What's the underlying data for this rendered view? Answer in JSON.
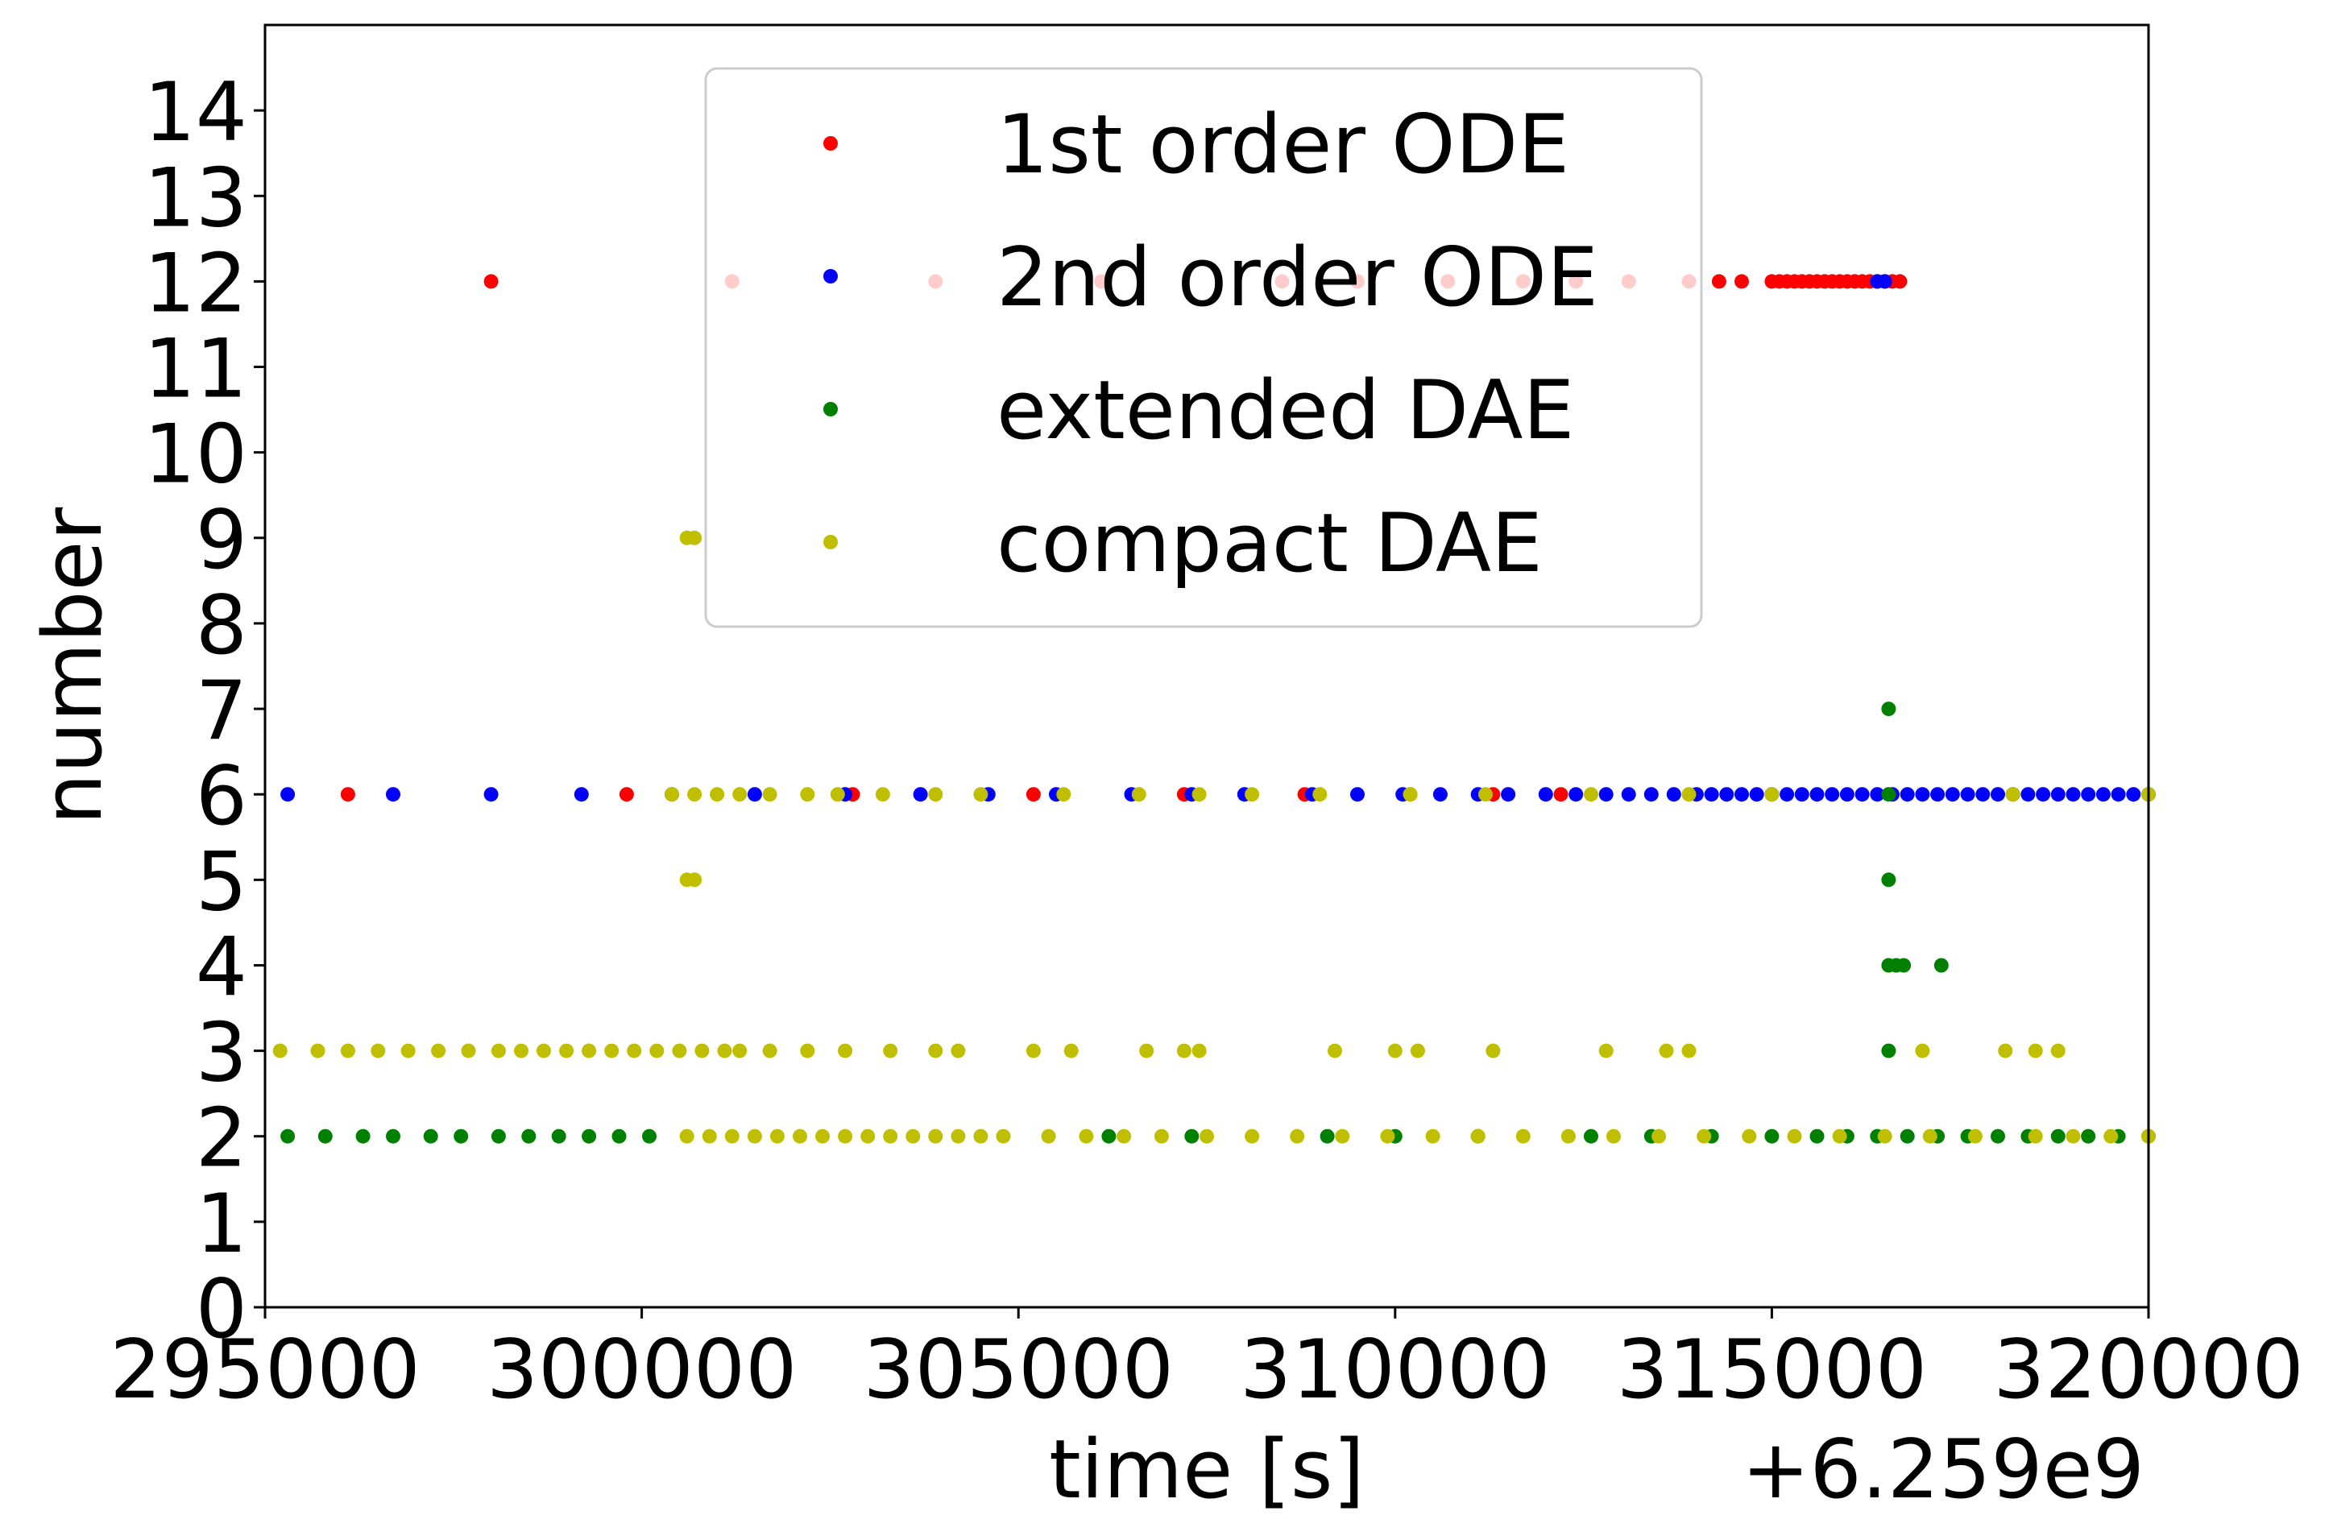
{
  "chart_data": {
    "type": "scatter",
    "xlabel": "time [s]",
    "ylabel": "number",
    "x_offset_label": "+6.259e9",
    "xlim": [
      295000,
      320000
    ],
    "ylim": [
      0,
      15
    ],
    "x_ticks": [
      "295000",
      "300000",
      "305000",
      "310000",
      "315000",
      "320000"
    ],
    "y_ticks": [
      "0",
      "1",
      "2",
      "3",
      "4",
      "5",
      "6",
      "7",
      "8",
      "9",
      "10",
      "11",
      "12",
      "13",
      "14"
    ],
    "grid": false,
    "legend_position": "upper center",
    "series": [
      {
        "name": "1st order ODE",
        "color": "#ff0000",
        "points": [
          [
            298000,
            12
          ],
          [
            301200,
            12
          ],
          [
            303900,
            12
          ],
          [
            306100,
            12
          ],
          [
            308500,
            12
          ],
          [
            309500,
            12
          ],
          [
            310700,
            12
          ],
          [
            311700,
            12
          ],
          [
            312400,
            12
          ],
          [
            313100,
            12
          ],
          [
            313900,
            12
          ],
          [
            314300,
            12
          ],
          [
            314600,
            12
          ],
          [
            315000,
            12
          ],
          [
            315100,
            12
          ],
          [
            315200,
            12
          ],
          [
            315300,
            12
          ],
          [
            315400,
            12
          ],
          [
            315500,
            12
          ],
          [
            315600,
            12
          ],
          [
            315700,
            12
          ],
          [
            315800,
            12
          ],
          [
            315900,
            12
          ],
          [
            316000,
            12
          ],
          [
            316100,
            12
          ],
          [
            316200,
            12
          ],
          [
            316300,
            12
          ],
          [
            316400,
            12
          ],
          [
            316500,
            12
          ],
          [
            316600,
            12
          ],
          [
            316700,
            12
          ],
          [
            296100,
            6
          ],
          [
            299800,
            6
          ],
          [
            302800,
            6
          ],
          [
            305200,
            6
          ],
          [
            307200,
            6
          ],
          [
            308800,
            6
          ],
          [
            310200,
            6
          ],
          [
            311300,
            6
          ],
          [
            312200,
            6
          ]
        ]
      },
      {
        "name": "2nd order ODE",
        "color": "#0000ff",
        "points": [
          [
            295300,
            6
          ],
          [
            296700,
            6
          ],
          [
            298000,
            6
          ],
          [
            299200,
            6
          ],
          [
            300400,
            6
          ],
          [
            301500,
            6
          ],
          [
            302700,
            6
          ],
          [
            303700,
            6
          ],
          [
            304600,
            6
          ],
          [
            305500,
            6
          ],
          [
            306500,
            6
          ],
          [
            307300,
            6
          ],
          [
            308000,
            6
          ],
          [
            308900,
            6
          ],
          [
            309500,
            6
          ],
          [
            310100,
            6
          ],
          [
            310600,
            6
          ],
          [
            311100,
            6
          ],
          [
            311500,
            6
          ],
          [
            312000,
            6
          ],
          [
            312400,
            6
          ],
          [
            312800,
            6
          ],
          [
            313100,
            6
          ],
          [
            313400,
            6
          ],
          [
            313700,
            6
          ],
          [
            314000,
            6
          ],
          [
            314200,
            6
          ],
          [
            314400,
            6
          ],
          [
            314600,
            6
          ],
          [
            314800,
            6
          ],
          [
            315000,
            6
          ],
          [
            315200,
            6
          ],
          [
            315400,
            6
          ],
          [
            315600,
            6
          ],
          [
            315800,
            6
          ],
          [
            316000,
            6
          ],
          [
            316200,
            6
          ],
          [
            316400,
            6
          ],
          [
            316600,
            6
          ],
          [
            316800,
            6
          ],
          [
            317000,
            6
          ],
          [
            317200,
            6
          ],
          [
            317400,
            6
          ],
          [
            317600,
            6
          ],
          [
            317800,
            6
          ],
          [
            318000,
            6
          ],
          [
            318200,
            6
          ],
          [
            318400,
            6
          ],
          [
            318600,
            6
          ],
          [
            318800,
            6
          ],
          [
            319000,
            6
          ],
          [
            319200,
            6
          ],
          [
            319400,
            6
          ],
          [
            319600,
            6
          ],
          [
            319800,
            6
          ],
          [
            320000,
            6
          ],
          [
            316400,
            12
          ],
          [
            316500,
            12
          ]
        ]
      },
      {
        "name": "extended DAE",
        "color": "#008000",
        "points": [
          [
            295300,
            2
          ],
          [
            295800,
            2
          ],
          [
            296300,
            2
          ],
          [
            296700,
            2
          ],
          [
            297200,
            2
          ],
          [
            297600,
            2
          ],
          [
            298100,
            2
          ],
          [
            298500,
            2
          ],
          [
            298900,
            2
          ],
          [
            299300,
            2
          ],
          [
            299700,
            2
          ],
          [
            300100,
            2
          ],
          [
            306200,
            2
          ],
          [
            307300,
            2
          ],
          [
            309100,
            2
          ],
          [
            310000,
            2
          ],
          [
            311100,
            2
          ],
          [
            312600,
            2
          ],
          [
            313400,
            2
          ],
          [
            314200,
            2
          ],
          [
            315000,
            2
          ],
          [
            315600,
            2
          ],
          [
            316000,
            2
          ],
          [
            316400,
            2
          ],
          [
            316800,
            2
          ],
          [
            317200,
            2
          ],
          [
            317600,
            2
          ],
          [
            318000,
            2
          ],
          [
            318400,
            2
          ],
          [
            318800,
            2
          ],
          [
            319200,
            2
          ],
          [
            319600,
            2
          ],
          [
            320000,
            2
          ],
          [
            316550,
            7
          ],
          [
            316550,
            6
          ],
          [
            316550,
            5
          ],
          [
            316550,
            4
          ],
          [
            316650,
            4
          ],
          [
            316750,
            4
          ],
          [
            317250,
            4
          ],
          [
            316550,
            3
          ]
        ]
      },
      {
        "name": "compact DAE",
        "color": "#bfbf00",
        "points": [
          [
            295200,
            3
          ],
          [
            295700,
            3
          ],
          [
            296100,
            3
          ],
          [
            296500,
            3
          ],
          [
            296900,
            3
          ],
          [
            297300,
            3
          ],
          [
            297700,
            3
          ],
          [
            298100,
            3
          ],
          [
            298400,
            3
          ],
          [
            298700,
            3
          ],
          [
            299000,
            3
          ],
          [
            299300,
            3
          ],
          [
            299600,
            3
          ],
          [
            299900,
            3
          ],
          [
            300200,
            3
          ],
          [
            300500,
            3
          ],
          [
            300800,
            3
          ],
          [
            301100,
            3
          ],
          [
            301300,
            3
          ],
          [
            301700,
            3
          ],
          [
            302200,
            3
          ],
          [
            302700,
            3
          ],
          [
            303300,
            3
          ],
          [
            303900,
            3
          ],
          [
            304200,
            3
          ],
          [
            305200,
            3
          ],
          [
            305700,
            3
          ],
          [
            306700,
            3
          ],
          [
            307200,
            3
          ],
          [
            307400,
            3
          ],
          [
            309200,
            3
          ],
          [
            310000,
            3
          ],
          [
            310300,
            3
          ],
          [
            311300,
            3
          ],
          [
            312800,
            3
          ],
          [
            313600,
            3
          ],
          [
            313900,
            3
          ],
          [
            317000,
            3
          ],
          [
            318100,
            3
          ],
          [
            318500,
            3
          ],
          [
            318800,
            3
          ],
          [
            300600,
            9
          ],
          [
            300700,
            9
          ],
          [
            300600,
            5
          ],
          [
            300700,
            5
          ],
          [
            300400,
            6
          ],
          [
            300700,
            6
          ],
          [
            301000,
            6
          ],
          [
            301300,
            6
          ],
          [
            301700,
            6
          ],
          [
            302200,
            6
          ],
          [
            302600,
            6
          ],
          [
            303200,
            6
          ],
          [
            303900,
            6
          ],
          [
            304500,
            6
          ],
          [
            305600,
            6
          ],
          [
            306600,
            6
          ],
          [
            307400,
            6
          ],
          [
            308100,
            6
          ],
          [
            309000,
            6
          ],
          [
            310200,
            6
          ],
          [
            311200,
            6
          ],
          [
            312600,
            6
          ],
          [
            313900,
            6
          ],
          [
            315000,
            6
          ],
          [
            318200,
            6
          ],
          [
            320000,
            6
          ],
          [
            300600,
            2
          ],
          [
            300900,
            2
          ],
          [
            301200,
            2
          ],
          [
            301500,
            2
          ],
          [
            301800,
            2
          ],
          [
            302100,
            2
          ],
          [
            302400,
            2
          ],
          [
            302700,
            2
          ],
          [
            303000,
            2
          ],
          [
            303300,
            2
          ],
          [
            303600,
            2
          ],
          [
            303900,
            2
          ],
          [
            304200,
            2
          ],
          [
            304500,
            2
          ],
          [
            304800,
            2
          ],
          [
            305400,
            2
          ],
          [
            305900,
            2
          ],
          [
            306400,
            2
          ],
          [
            306900,
            2
          ],
          [
            307500,
            2
          ],
          [
            308100,
            2
          ],
          [
            308700,
            2
          ],
          [
            309300,
            2
          ],
          [
            309900,
            2
          ],
          [
            310500,
            2
          ],
          [
            311100,
            2
          ],
          [
            311700,
            2
          ],
          [
            312300,
            2
          ],
          [
            312900,
            2
          ],
          [
            313500,
            2
          ],
          [
            314100,
            2
          ],
          [
            314700,
            2
          ],
          [
            315300,
            2
          ],
          [
            315900,
            2
          ],
          [
            316500,
            2
          ],
          [
            317100,
            2
          ],
          [
            317700,
            2
          ],
          [
            318500,
            2
          ],
          [
            319000,
            2
          ],
          [
            319500,
            2
          ],
          [
            320000,
            2
          ]
        ]
      }
    ]
  }
}
